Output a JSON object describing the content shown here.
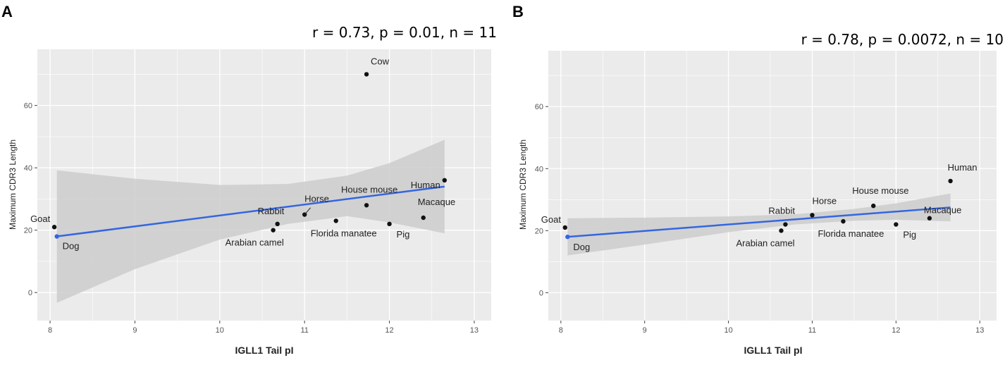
{
  "chart_data": [
    {
      "panel": "A",
      "type": "scatter",
      "title": "r = 0.73, p = 0.01, n = 11",
      "xlabel": "IGLL1 Tail pI",
      "ylabel": "Maximum CDR3 Length",
      "xlim": [
        7.85,
        13.2
      ],
      "ylim": [
        -9,
        78
      ],
      "xticks": [
        8,
        9,
        10,
        11,
        12,
        13
      ],
      "yticks": [
        0,
        20,
        40,
        60
      ],
      "grid": true,
      "points": [
        {
          "label": "Goat",
          "x": 8.05,
          "y": 21
        },
        {
          "label": "Dog",
          "x": 8.08,
          "y": 18
        },
        {
          "label": "Arabian camel",
          "x": 10.63,
          "y": 20
        },
        {
          "label": "Rabbit",
          "x": 10.68,
          "y": 22
        },
        {
          "label": "Horse",
          "x": 11.0,
          "y": 25
        },
        {
          "label": "Florida manatee",
          "x": 11.37,
          "y": 23
        },
        {
          "label": "House mouse",
          "x": 11.73,
          "y": 28
        },
        {
          "label": "Cow",
          "x": 11.73,
          "y": 70
        },
        {
          "label": "Pig",
          "x": 12.0,
          "y": 22
        },
        {
          "label": "Macaque",
          "x": 12.4,
          "y": 24
        },
        {
          "label": "Human",
          "x": 12.65,
          "y": 36
        }
      ],
      "fit": {
        "x": [
          8.08,
          12.65
        ],
        "y": [
          18,
          34
        ]
      },
      "ci_band": {
        "x": [
          8.08,
          9.0,
          10.0,
          10.8,
          11.5,
          12.0,
          12.65
        ],
        "upper": [
          39.2,
          36.5,
          34.5,
          34.8,
          37.5,
          41.5,
          49
        ],
        "lower": [
          -3.3,
          7.5,
          17.0,
          22.0,
          24.5,
          22.5,
          19
        ]
      },
      "colors": {
        "fit": "#3366e0",
        "band": "#cccccc",
        "panel_bg": "#ebebeb",
        "grid": "#ffffff",
        "point": "#111111"
      }
    },
    {
      "panel": "B",
      "type": "scatter",
      "title": "r = 0.78, p = 0.0072, n = 10",
      "xlabel": "IGLL1 Tail pI",
      "ylabel": "Maximum CDR3 Length",
      "xlim": [
        7.85,
        13.2
      ],
      "ylim": [
        -9,
        78
      ],
      "xticks": [
        8,
        9,
        10,
        11,
        12,
        13
      ],
      "yticks": [
        0,
        20,
        40,
        60
      ],
      "grid": true,
      "points": [
        {
          "label": "Goat",
          "x": 8.05,
          "y": 21
        },
        {
          "label": "Dog",
          "x": 8.08,
          "y": 18
        },
        {
          "label": "Arabian camel",
          "x": 10.63,
          "y": 20
        },
        {
          "label": "Rabbit",
          "x": 10.68,
          "y": 22
        },
        {
          "label": "Horse",
          "x": 11.0,
          "y": 25
        },
        {
          "label": "Florida manatee",
          "x": 11.37,
          "y": 23
        },
        {
          "label": "House mouse",
          "x": 11.73,
          "y": 28
        },
        {
          "label": "Pig",
          "x": 12.0,
          "y": 22
        },
        {
          "label": "Macaque",
          "x": 12.4,
          "y": 24
        },
        {
          "label": "Human",
          "x": 12.65,
          "y": 36
        }
      ],
      "fit": {
        "x": [
          8.08,
          12.65
        ],
        "y": [
          18,
          27.5
        ]
      },
      "ci_band": {
        "x": [
          8.08,
          9.0,
          10.0,
          10.8,
          11.5,
          12.0,
          12.65
        ],
        "upper": [
          24,
          24.2,
          24.6,
          25.3,
          27.0,
          28.8,
          32
        ],
        "lower": [
          12,
          15.5,
          19.5,
          22.0,
          23.2,
          23.5,
          23
        ]
      },
      "colors": {
        "fit": "#3366e0",
        "band": "#cccccc",
        "panel_bg": "#ebebeb",
        "grid": "#ffffff",
        "point": "#111111"
      }
    }
  ]
}
